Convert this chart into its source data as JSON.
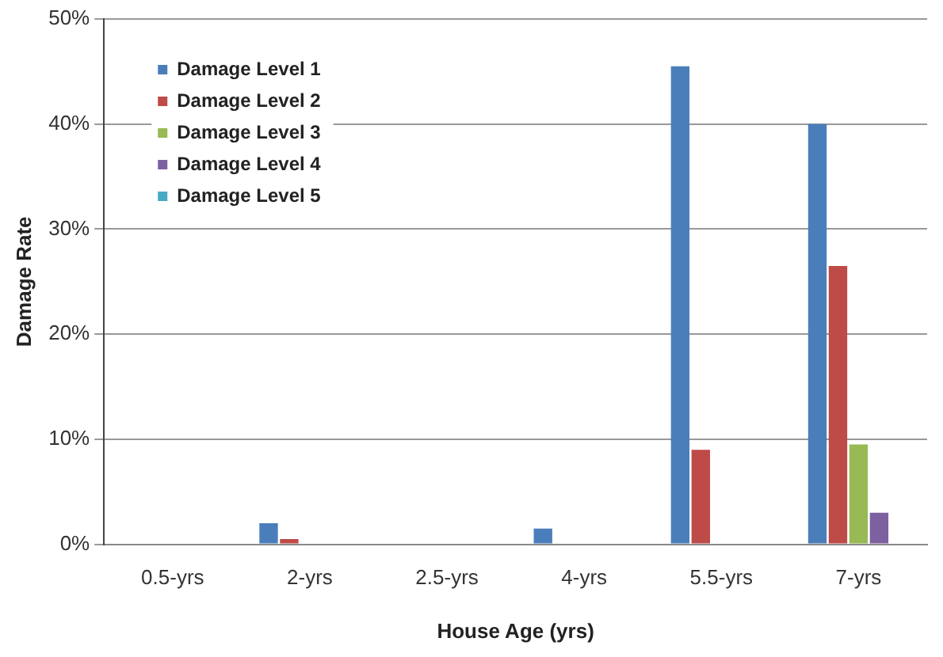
{
  "chart_data": {
    "type": "bar",
    "xlabel": "House Age (yrs)",
    "ylabel": "Damage Rate",
    "categories": [
      "0.5-yrs",
      "2-yrs",
      "2.5-yrs",
      "4-yrs",
      "5.5-yrs",
      "7-yrs"
    ],
    "series": [
      {
        "name": "Damage Level 1",
        "color": "#4a7ebb",
        "values": [
          0,
          2,
          0,
          1.5,
          45.5,
          40
        ]
      },
      {
        "name": "Damage Level 2",
        "color": "#be4b48",
        "values": [
          0,
          0.5,
          0,
          0,
          9,
          26.5
        ]
      },
      {
        "name": "Damage Level 3",
        "color": "#98b954",
        "values": [
          0,
          0,
          0,
          0,
          0,
          9.5
        ]
      },
      {
        "name": "Damage Level 4",
        "color": "#7d60a0",
        "values": [
          0,
          0,
          0,
          0,
          0,
          3
        ]
      },
      {
        "name": "Damage Level 5",
        "color": "#46aac5",
        "values": [
          0,
          0,
          0,
          0,
          0,
          0
        ]
      }
    ],
    "ylim": [
      0,
      50
    ],
    "yticks": [
      {
        "value": 0,
        "label": "0%"
      },
      {
        "value": 10,
        "label": "10%"
      },
      {
        "value": 20,
        "label": "20%"
      },
      {
        "value": 30,
        "label": "30%"
      },
      {
        "value": 40,
        "label": "40%"
      },
      {
        "value": 50,
        "label": "50%"
      }
    ],
    "grid": "y",
    "legend": "top left"
  }
}
